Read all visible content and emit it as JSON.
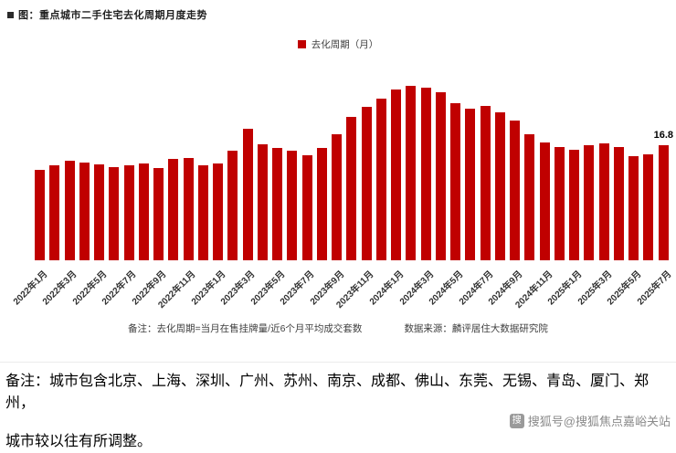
{
  "page": {
    "title": "图：重点城市二手住宅去化周期月度走势",
    "legend_label": "去化周期（月）",
    "footnote_left": "备注：去化周期=当月在售挂牌量/近6个月平均成交套数",
    "footnote_right": "数据来源：麟评居住大数据研究院",
    "body_note_line1": "备注：城市包含北京、上海、深圳、广州、苏州、南京、成都、佛山、东莞、无锡、青岛、厦门、郑州，",
    "body_note_line2": "城市较以往有所调整。",
    "watermark": "搜狐号@搜狐焦点嘉峪关站",
    "sohu_icon_glyph": "搜"
  },
  "colors": {
    "bar": "#C00000",
    "legend_swatch": "#C00000"
  },
  "chart_data": {
    "type": "bar",
    "title": "重点城市二手住宅去化周期月度走势",
    "series_name": "去化周期（月）",
    "categories": [
      "2022年1月",
      "2022年2月",
      "2022年3月",
      "2022年4月",
      "2022年5月",
      "2022年6月",
      "2022年7月",
      "2022年8月",
      "2022年9月",
      "2022年10月",
      "2022年11月",
      "2022年12月",
      "2023年1月",
      "2023年2月",
      "2023年3月",
      "2023年4月",
      "2023年5月",
      "2023年6月",
      "2023年7月",
      "2023年8月",
      "2023年9月",
      "2023年10月",
      "2023年11月",
      "2023年12月",
      "2024年1月",
      "2024年2月",
      "2024年3月",
      "2024年4月",
      "2024年5月",
      "2024年6月",
      "2024年7月",
      "2024年8月",
      "2024年9月",
      "2024年10月",
      "2024年11月",
      "2024年12月",
      "2025年1月",
      "2025年2月",
      "2025年3月",
      "2025年4月",
      "2025年5月",
      "2025年6月",
      "2025年7月"
    ],
    "values": [
      13.2,
      13.9,
      14.5,
      14.3,
      14.0,
      13.6,
      13.9,
      14.2,
      13.5,
      14.8,
      15.0,
      13.9,
      14.2,
      16.0,
      19.2,
      17.0,
      16.4,
      16.0,
      15.4,
      16.4,
      18.4,
      21.0,
      22.4,
      23.6,
      25.0,
      25.5,
      25.2,
      24.6,
      23.0,
      22.2,
      22.6,
      21.6,
      20.4,
      18.4,
      17.2,
      16.6,
      16.1,
      16.8,
      17.1,
      16.6,
      15.2,
      15.5,
      16.8
    ],
    "x_tick_labels": [
      "2022年1月",
      "2022年3月",
      "2022年5月",
      "2022年7月",
      "2022年9月",
      "2022年11月",
      "2023年1月",
      "2023年3月",
      "2023年5月",
      "2023年7月",
      "2023年9月",
      "2023年11月",
      "2024年1月",
      "2024年3月",
      "2024年5月",
      "2024年7月",
      "2024年9月",
      "2024年11月",
      "2025年1月",
      "2025年3月",
      "2025年5月",
      "2025年7月"
    ],
    "last_value_label": "16.8",
    "xlabel": "",
    "ylabel": "去化周期（月）",
    "ylim": [
      0,
      26
    ],
    "grid": false,
    "legend_position": "top-center"
  }
}
